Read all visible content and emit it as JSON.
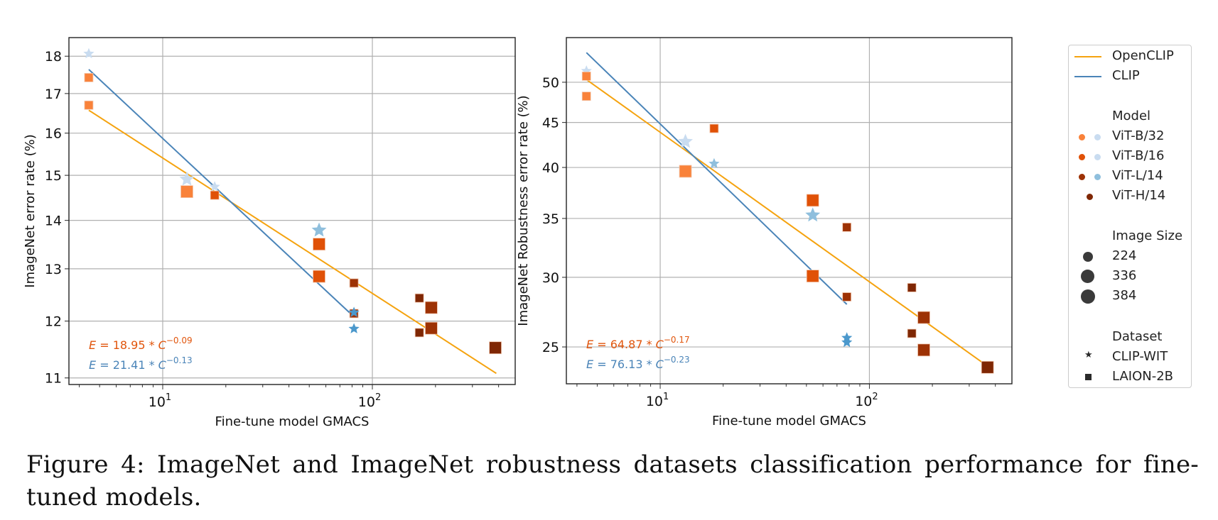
{
  "caption": "Figure 4: ImageNet and ImageNet robustness datasets classification performance for fine-tuned models.",
  "colors": {
    "openclip_line": "#f5a30f",
    "clip_line": "#4a84b8",
    "openclip_eq": "#e1550c",
    "clip_eq": "#4a84b8",
    "laion_b32": "#f9823a",
    "laion_b16": "#e05107",
    "laion_l14": "#9d3205",
    "laion_h14": "#7f2704",
    "clip_b32": "#c9dcf0",
    "clip_b16": "#c9dcf0",
    "clip_l14": "#8fbfdd",
    "clip_l14_dark": "#4b98cc"
  },
  "legend": {
    "lines": [
      {
        "label": "OpenCLIP",
        "color": "#f5a30f"
      },
      {
        "label": "CLIP",
        "color": "#4a84b8"
      }
    ],
    "model_title": "Model",
    "models": [
      {
        "label": "ViT-B/32",
        "laion": "#f9823a",
        "clip": "#c9dcf0"
      },
      {
        "label": "ViT-B/16",
        "laion": "#e05107",
        "clip": "#c9dcf0"
      },
      {
        "label": "ViT-L/14",
        "laion": "#9d3205",
        "clip": "#8fbfdd"
      },
      {
        "label": "ViT-H/14",
        "laion": "#7f2704",
        "clip": null
      }
    ],
    "size_title": "Image Size",
    "sizes": [
      "224",
      "336",
      "384"
    ],
    "dataset_title": "Dataset",
    "datasets": [
      {
        "label": "CLIP-WIT",
        "marker": "star"
      },
      {
        "label": "LAION-2B",
        "marker": "square"
      }
    ]
  },
  "chart_data": [
    {
      "type": "scatter",
      "title": "",
      "xlabel": "Fine-tune model GMACS",
      "ylabel": "ImageNet error rate (%)",
      "xscale": "log",
      "yscale": "log",
      "xlim": [
        3.57,
        480
      ],
      "ylim": [
        10.89,
        18.52
      ],
      "xticks": [
        {
          "value": 10,
          "label": "10^1"
        },
        {
          "value": 100,
          "label": "10^2"
        }
      ],
      "yticks": [
        11,
        12,
        13,
        14,
        15,
        16,
        17,
        18
      ],
      "grid": true,
      "annotations": [
        {
          "text": "E = 18.95 * C^-0.09",
          "base": "E = 18.95 * C",
          "exp": "−0.09",
          "series": "OpenCLIP"
        },
        {
          "text": "E = 21.41 * C^-0.13",
          "base": "E = 21.41 * C",
          "exp": "−0.13",
          "series": "CLIP"
        }
      ],
      "fits": [
        {
          "name": "OpenCLIP",
          "a": 18.95,
          "b": -0.09,
          "x_range": [
            4.44,
            390
          ]
        },
        {
          "name": "CLIP",
          "a": 21.41,
          "b": -0.13,
          "x_range": [
            4.44,
            82
          ]
        }
      ],
      "points": [
        {
          "model": "ViT-B/32",
          "dataset": "CLIP-WIT",
          "size": 224,
          "x": 4.44,
          "y": 18.07
        },
        {
          "model": "ViT-B/32",
          "dataset": "LAION-2B",
          "size": 224,
          "x": 4.44,
          "y": 17.42
        },
        {
          "model": "ViT-B/32",
          "dataset": "LAION-2B",
          "size": 224,
          "x": 4.44,
          "y": 16.7
        },
        {
          "model": "ViT-B/32",
          "dataset": "CLIP-WIT",
          "size": 384,
          "x": 13.04,
          "y": 14.91
        },
        {
          "model": "ViT-B/32",
          "dataset": "LAION-2B",
          "size": 384,
          "x": 13.04,
          "y": 14.63
        },
        {
          "model": "ViT-B/16",
          "dataset": "CLIP-WIT",
          "size": 224,
          "x": 17.7,
          "y": 14.74
        },
        {
          "model": "ViT-B/16",
          "dataset": "LAION-2B",
          "size": 224,
          "x": 17.7,
          "y": 14.55
        },
        {
          "model": "ViT-L/14",
          "dataset": "CLIP-WIT",
          "size": 384,
          "x": 55.7,
          "y": 13.79
        },
        {
          "model": "ViT-B/16",
          "dataset": "LAION-2B",
          "size": 384,
          "x": 55.7,
          "y": 13.5
        },
        {
          "model": "ViT-B/16",
          "dataset": "LAION-2B",
          "size": 384,
          "x": 55.7,
          "y": 12.85
        },
        {
          "model": "ViT-L/14",
          "dataset": "LAION-2B",
          "size": 224,
          "x": 81.7,
          "y": 12.72
        },
        {
          "model": "ViT-L/14",
          "dataset": "LAION-2B",
          "size": 224,
          "x": 81.7,
          "y": 12.14
        },
        {
          "model": "ViT-L/14",
          "dataset": "CLIP-WIT",
          "size": 224,
          "x": 81.7,
          "y": 12.16,
          "dark": true
        },
        {
          "model": "ViT-L/14",
          "dataset": "CLIP-WIT",
          "size": 224,
          "x": 81.7,
          "y": 11.86,
          "dark": true
        },
        {
          "model": "ViT-H/14",
          "dataset": "LAION-2B",
          "size": 224,
          "x": 167.6,
          "y": 12.43
        },
        {
          "model": "ViT-L/14",
          "dataset": "LAION-2B",
          "size": 336,
          "x": 191,
          "y": 12.25
        },
        {
          "model": "ViT-H/14",
          "dataset": "LAION-2B",
          "size": 224,
          "x": 167.6,
          "y": 11.79
        },
        {
          "model": "ViT-L/14",
          "dataset": "LAION-2B",
          "size": 336,
          "x": 191,
          "y": 11.87
        },
        {
          "model": "ViT-H/14",
          "dataset": "LAION-2B",
          "size": 384,
          "x": 386,
          "y": 11.52
        }
      ]
    },
    {
      "type": "scatter",
      "title": "",
      "xlabel": "Fine-tune model GMACS",
      "ylabel": "ImageNet Robustness error rate (%)",
      "xscale": "log",
      "yscale": "log",
      "xlim": [
        3.56,
        480
      ],
      "ylim": [
        22.7,
        56.2
      ],
      "xticks": [
        {
          "value": 10,
          "label": "10^1"
        },
        {
          "value": 100,
          "label": "10^2"
        }
      ],
      "yticks": [
        25,
        30,
        35,
        40,
        45,
        50
      ],
      "grid": true,
      "annotations": [
        {
          "text": "E = 64.87 * C^-0.17",
          "base": "E = 64.87 * C",
          "exp": "−0.17",
          "series": "OpenCLIP"
        },
        {
          "text": "E = 76.13 * C^-0.23",
          "base": "E = 76.13 * C",
          "exp": "−0.23",
          "series": "CLIP"
        }
      ],
      "fits": [
        {
          "name": "OpenCLIP",
          "a": 64.87,
          "b": -0.17,
          "x_range": [
            4.44,
            385
          ]
        },
        {
          "name": "CLIP",
          "a": 76.13,
          "b": -0.23,
          "x_range": [
            4.44,
            78
          ]
        }
      ],
      "points": [
        {
          "model": "ViT-B/32",
          "dataset": "CLIP-WIT",
          "size": 224,
          "x": 4.44,
          "y": 51.5
        },
        {
          "model": "ViT-B/32",
          "dataset": "LAION-2B",
          "size": 224,
          "x": 4.44,
          "y": 50.8
        },
        {
          "model": "ViT-B/32",
          "dataset": "LAION-2B",
          "size": 224,
          "x": 4.44,
          "y": 48.2
        },
        {
          "model": "ViT-B/32",
          "dataset": "CLIP-WIT",
          "size": 384,
          "x": 13.2,
          "y": 42.8
        },
        {
          "model": "ViT-B/32",
          "dataset": "LAION-2B",
          "size": 384,
          "x": 13.2,
          "y": 39.6
        },
        {
          "model": "ViT-B/16",
          "dataset": "LAION-2B",
          "size": 224,
          "x": 18.1,
          "y": 44.3
        },
        {
          "model": "ViT-L/14",
          "dataset": "CLIP-WIT",
          "size": 224,
          "x": 18.1,
          "y": 40.4
        },
        {
          "model": "ViT-B/16",
          "dataset": "LAION-2B",
          "size": 384,
          "x": 53.6,
          "y": 36.7
        },
        {
          "model": "ViT-L/14",
          "dataset": "CLIP-WIT",
          "size": 384,
          "x": 53.6,
          "y": 35.3
        },
        {
          "model": "ViT-B/16",
          "dataset": "LAION-2B",
          "size": 384,
          "x": 53.6,
          "y": 30.1
        },
        {
          "model": "ViT-L/14",
          "dataset": "LAION-2B",
          "size": 224,
          "x": 78.0,
          "y": 34.2
        },
        {
          "model": "ViT-L/14",
          "dataset": "LAION-2B",
          "size": 224,
          "x": 78.0,
          "y": 28.5
        },
        {
          "model": "ViT-L/14",
          "dataset": "CLIP-WIT",
          "size": 224,
          "x": 78.0,
          "y": 25.6,
          "dark": true
        },
        {
          "model": "ViT-L/14",
          "dataset": "CLIP-WIT",
          "size": 224,
          "x": 78.0,
          "y": 25.3,
          "dark": true
        },
        {
          "model": "ViT-H/14",
          "dataset": "LAION-2B",
          "size": 224,
          "x": 159.5,
          "y": 29.2
        },
        {
          "model": "ViT-L/14",
          "dataset": "LAION-2B",
          "size": 336,
          "x": 182,
          "y": 27.0
        },
        {
          "model": "ViT-H/14",
          "dataset": "LAION-2B",
          "size": 224,
          "x": 159.5,
          "y": 25.9
        },
        {
          "model": "ViT-L/14",
          "dataset": "LAION-2B",
          "size": 336,
          "x": 182,
          "y": 24.8
        },
        {
          "model": "ViT-H/14",
          "dataset": "LAION-2B",
          "size": 384,
          "x": 367,
          "y": 23.7
        }
      ]
    }
  ]
}
